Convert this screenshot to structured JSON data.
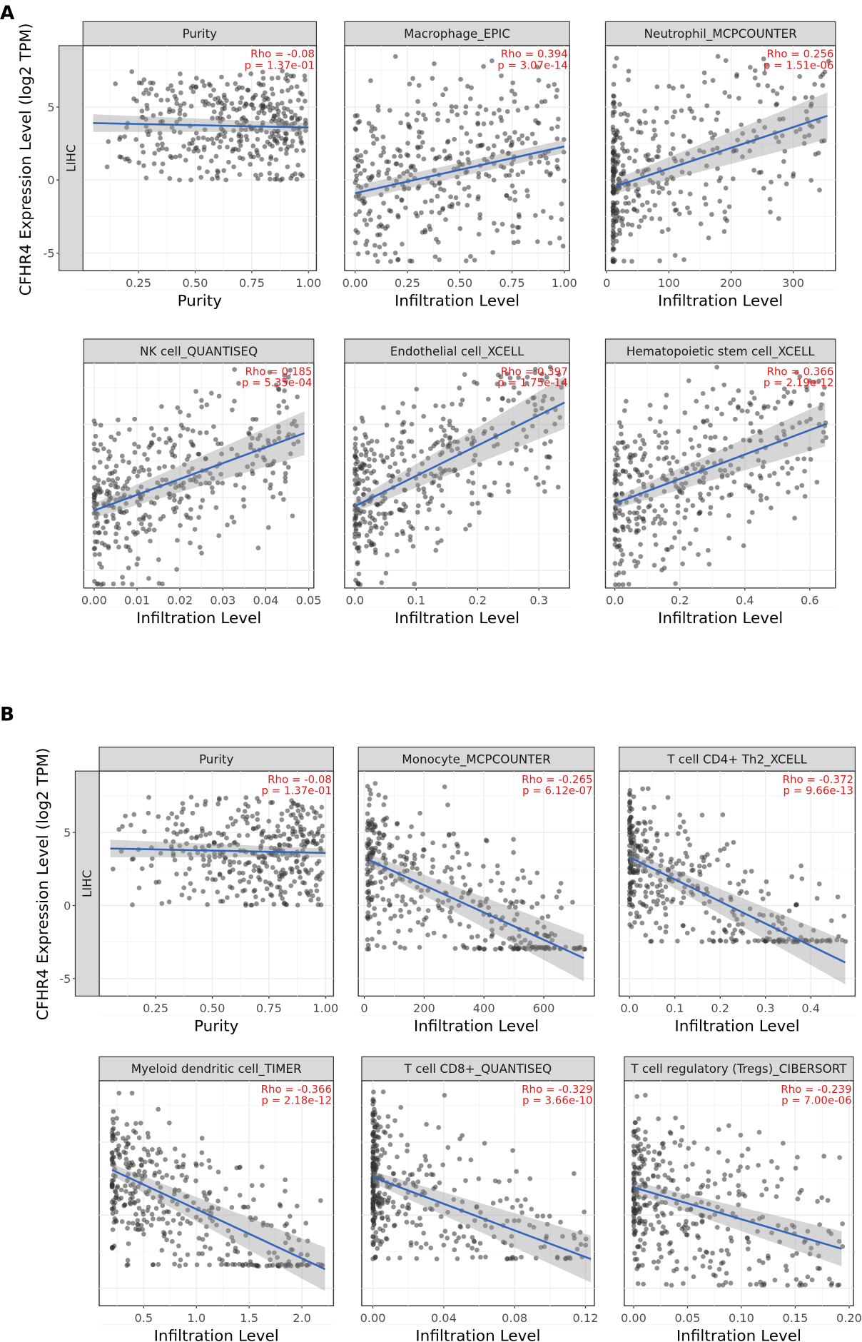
{
  "figure": {
    "panel_labels": [
      "A",
      "B"
    ],
    "ylabel": "CFHR4 Expression Level (log2 TPM)",
    "row_strip": "LIHC",
    "ytick_labels": [
      "-5",
      "0",
      "5"
    ],
    "ytick_values": [
      -5,
      0,
      5
    ],
    "ylim": [
      -6.2,
      9.2
    ]
  },
  "colors": {
    "points": "#333333",
    "fit": "#3366bb",
    "stat": "#e41a1c",
    "strip": "#d9d9d9"
  },
  "chart_data": [
    {
      "type": "scatter",
      "title": "Purity",
      "rho": "Rho = -0.08",
      "p": "p = 1.37e-01",
      "xlabel": "Purity",
      "xlim": [
        0.005,
        1.035
      ],
      "xticks": [
        0.25,
        0.5,
        0.75,
        1.0
      ],
      "xtick_labels": [
        "0.25",
        "0.50",
        "0.75",
        "1.00"
      ],
      "fit": {
        "x": [
          0.05,
          1.0
        ],
        "y": [
          3.9,
          3.6
        ]
      },
      "ci_halfwidth": [
        0.6,
        0.3
      ],
      "points": {
        "n": 380,
        "x_range": [
          0.05,
          0.99
        ],
        "x_skew": 0.55,
        "resid_sd": 2.0,
        "y_clip": [
          0,
          7.5
        ]
      }
    },
    {
      "type": "scatter",
      "title": "Macrophage_EPIC",
      "rho": "Rho = 0.394",
      "p": "p = 3.07e-14",
      "xlabel": "Infiltration Level",
      "xlim": [
        -0.05,
        1.025
      ],
      "xticks": [
        0,
        0.25,
        0.5,
        0.75,
        1.0
      ],
      "xtick_labels": [
        "0.00",
        "0.25",
        "0.50",
        "0.75",
        "1.00"
      ],
      "fit": {
        "x": [
          0,
          1
        ],
        "y": [
          -0.9,
          2.3
        ]
      },
      "ci_halfwidth": [
        0.5,
        0.45
      ],
      "points": {
        "n": 380,
        "x_range": [
          0,
          1
        ],
        "x_skew": 1.3,
        "resid_sd": 3.2,
        "y_clip": [
          -5.6,
          8.5
        ]
      }
    },
    {
      "type": "scatter",
      "title": "Neutrophil_MCPCOUNTER",
      "rho": "Rho = 0.256",
      "p": "p = 1.51e-06",
      "xlabel": "Infiltration Level",
      "xlim": [
        -2,
        368
      ],
      "xticks": [
        0,
        100,
        200,
        300
      ],
      "xtick_labels": [
        "0",
        "100",
        "200",
        "300"
      ],
      "fit": {
        "x": [
          16,
          355
        ],
        "y": [
          -0.4,
          4.4
        ]
      },
      "ci_halfwidth": [
        0.5,
        1.6
      ],
      "points": {
        "n": 380,
        "x_range": [
          10,
          360
        ],
        "x_skew": 2.8,
        "resid_sd": 3.0,
        "y_clip": [
          -5.6,
          8.5
        ]
      }
    },
    {
      "type": "scatter",
      "title": "NK cell_QUANTISEQ",
      "rho": "Rho = 0.185",
      "p": "p = 5.35e-04",
      "xlabel": "Infiltration Level",
      "xlim": [
        -0.0024,
        0.0512
      ],
      "xticks": [
        0,
        0.01,
        0.02,
        0.03,
        0.04,
        0.05
      ],
      "xtick_labels": [
        "0.00",
        "0.01",
        "0.02",
        "0.03",
        "0.04",
        "0.05"
      ],
      "fit": {
        "x": [
          0,
          0.049
        ],
        "y": [
          -0.9,
          4.4
        ]
      },
      "ci_halfwidth": [
        0.5,
        1.5
      ],
      "points": {
        "n": 380,
        "x_range": [
          0,
          0.048
        ],
        "x_skew": 1.8,
        "resid_sd": 2.8,
        "y_clip": [
          -6,
          9
        ]
      }
    },
    {
      "type": "scatter",
      "title": "Endothelial cell_XCELL",
      "rho": "Rho = 0.397",
      "p": "p = 1.75e-14",
      "xlabel": "Infiltration Level",
      "xlim": [
        -0.0167,
        0.35
      ],
      "xticks": [
        0,
        0.1,
        0.2,
        0.3
      ],
      "xtick_labels": [
        "0.0",
        "0.1",
        "0.2",
        "0.3"
      ],
      "fit": {
        "x": [
          0,
          0.342
        ],
        "y": [
          -0.6,
          6.5
        ]
      },
      "ci_halfwidth": [
        0.4,
        1.8
      ],
      "points": {
        "n": 380,
        "x_range": [
          0,
          0.34
        ],
        "x_skew": 2.2,
        "resid_sd": 2.8,
        "y_clip": [
          -6,
          9
        ]
      }
    },
    {
      "type": "scatter",
      "title": "Hematopoietic stem cell_XCELL",
      "rho": "Rho = 0.366",
      "p": "p = 2.19e-12",
      "xlabel": "Infiltration Level",
      "xlim": [
        -0.029,
        0.679
      ],
      "xticks": [
        0,
        0.2,
        0.4,
        0.6
      ],
      "xtick_labels": [
        "0.0",
        "0.2",
        "0.4",
        "0.6"
      ],
      "fit": {
        "x": [
          0,
          0.647
        ],
        "y": [
          -0.4,
          5.0
        ]
      },
      "ci_halfwidth": [
        0.4,
        1.5
      ],
      "points": {
        "n": 380,
        "x_range": [
          0,
          0.65
        ],
        "x_skew": 1.8,
        "resid_sd": 2.8,
        "y_clip": [
          -6,
          9
        ]
      }
    },
    {
      "type": "scatter",
      "title": "Purity",
      "rho": "Rho = -0.08",
      "p": "p = 1.37e-01",
      "xlabel": "Purity",
      "xlim": [
        0.001,
        1.035
      ],
      "xticks": [
        0.25,
        0.5,
        0.75,
        1.0
      ],
      "xtick_labels": [
        "0.25",
        "0.50",
        "0.75",
        "1.00"
      ],
      "fit": {
        "x": [
          0.05,
          1.0
        ],
        "y": [
          3.9,
          3.6
        ]
      },
      "ci_halfwidth": [
        0.6,
        0.3
      ],
      "points": {
        "n": 380,
        "x_range": [
          0.05,
          0.99
        ],
        "x_skew": 0.55,
        "resid_sd": 2.0,
        "y_clip": [
          0,
          7.5
        ]
      }
    },
    {
      "type": "scatter",
      "title": "Monocyte_MCPCOUNTER",
      "rho": "Rho = -0.265",
      "p": "p = 6.12e-07",
      "xlabel": "Infiltration Level",
      "xlim": [
        -20,
        769
      ],
      "xticks": [
        0,
        200,
        400,
        600
      ],
      "xtick_labels": [
        "0",
        "200",
        "400",
        "600"
      ],
      "fit": {
        "x": [
          17,
          734
        ],
        "y": [
          3.1,
          -3.6
        ]
      },
      "ci_halfwidth": [
        0.4,
        1.6
      ],
      "points": {
        "n": 380,
        "x_range": [
          10,
          740
        ],
        "x_skew": 2.0,
        "resid_sd": 2.5,
        "y_clip": [
          -3,
          8.5
        ]
      }
    },
    {
      "type": "scatter",
      "title": "T cell CD4+ Th2_XCELL",
      "rho": "Rho = -0.372",
      "p": "p = 9.66e-13",
      "xlabel": "Infiltration Level",
      "xlim": [
        -0.023,
        0.498
      ],
      "xticks": [
        0,
        0.1,
        0.2,
        0.3,
        0.4
      ],
      "xtick_labels": [
        "0.0",
        "0.1",
        "0.2",
        "0.3",
        "0.4"
      ],
      "fit": {
        "x": [
          0,
          0.476
        ],
        "y": [
          3.3,
          -3.9
        ]
      },
      "ci_halfwidth": [
        0.4,
        1.5
      ],
      "points": {
        "n": 380,
        "x_range": [
          0,
          0.48
        ],
        "x_skew": 2.5,
        "resid_sd": 2.4,
        "y_clip": [
          -2.5,
          8.5
        ]
      }
    },
    {
      "type": "scatter",
      "title": "Myeloid dendritic cell_TIMER",
      "rho": "Rho = -0.366",
      "p": "p = 2.18e-12",
      "xlabel": "Infiltration Level",
      "xlim": [
        0.078,
        2.3
      ],
      "xticks": [
        0.5,
        1.0,
        1.5,
        2.0
      ],
      "xtick_labels": [
        "0.5",
        "1.0",
        "1.5",
        "2.0"
      ],
      "fit": {
        "x": [
          0.2,
          2.22
        ],
        "y": [
          3.1,
          -3.7
        ]
      },
      "ci_halfwidth": [
        0.4,
        1.5
      ],
      "points": {
        "n": 380,
        "x_range": [
          0.2,
          2.22
        ],
        "x_skew": 2.2,
        "resid_sd": 2.4,
        "y_clip": [
          -3.5,
          8.5
        ]
      }
    },
    {
      "type": "scatter",
      "title": "T cell CD8+_QUANTISEQ",
      "rho": "Rho = -0.329",
      "p": "p = 3.66e-10",
      "xlabel": "Infiltration Level",
      "xlim": [
        -0.0063,
        0.125
      ],
      "xticks": [
        0,
        0.04,
        0.08,
        0.12
      ],
      "xtick_labels": [
        "0.00",
        "0.04",
        "0.08",
        "0.12"
      ],
      "fit": {
        "x": [
          0,
          0.123
        ],
        "y": [
          2.6,
          -3.0
        ]
      },
      "ci_halfwidth": [
        0.4,
        1.6
      ],
      "points": {
        "n": 380,
        "x_range": [
          0,
          0.123
        ],
        "x_skew": 4.0,
        "resid_sd": 2.6,
        "y_clip": [
          -3,
          8.5
        ]
      }
    },
    {
      "type": "scatter",
      "title": "T cell regulatory (Tregs)_CIBERSORT",
      "rho": "Rho = -0.239",
      "p": "p = 7.00e-06",
      "xlabel": "Infiltration Level",
      "xlim": [
        -0.0087,
        0.204
      ],
      "xticks": [
        0,
        0.05,
        0.1,
        0.15,
        0.2
      ],
      "xtick_labels": [
        "0.00",
        "0.05",
        "0.10",
        "0.15",
        "0.20"
      ],
      "fit": {
        "x": [
          0,
          0.193
        ],
        "y": [
          1.9,
          -2.3
        ]
      },
      "ci_halfwidth": [
        0.4,
        1.2
      ],
      "points": {
        "n": 380,
        "x_range": [
          0,
          0.195
        ],
        "x_skew": 2.5,
        "resid_sd": 2.8,
        "y_clip": [
          -4.8,
          8.5
        ]
      }
    }
  ]
}
